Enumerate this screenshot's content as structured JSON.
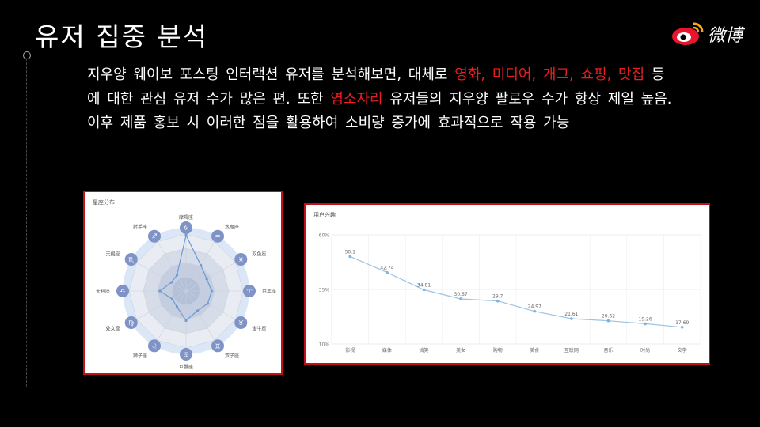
{
  "page": {
    "title": "유저 집중 분석",
    "logo_text": "微博",
    "paragraph": [
      {
        "text": "지우양 웨이보 포스팅 인터랙션 유저를 분석해보면, 대체로 ",
        "highlight": false
      },
      {
        "text": "영화, 미디어, 개그, 쇼핑, 맛집",
        "highlight": true
      },
      {
        "text": " 등에 대한 관심 유저 수가 많은 편. 또한 ",
        "highlight": false
      },
      {
        "text": "염소자리",
        "highlight": true
      },
      {
        "text": " 유저들의 지우양 팔로우 수가 항상 제일 높음. 이후 제품 홍보 시 이러한 점을 활용하여 소비량 증가에 효과적으로 작용 가능",
        "highlight": false
      }
    ],
    "colors": {
      "highlight": "#e81e24",
      "panel_border": "#c0101a",
      "accent": "#7f93c6"
    }
  },
  "chart_data": [
    {
      "type": "radar",
      "title": "星座分布",
      "categories": [
        "摩羯座",
        "水瓶座",
        "双鱼座",
        "白羊座",
        "金牛座",
        "双子座",
        "巨蟹座",
        "狮子座",
        "处女座",
        "天秤座",
        "天蝎座",
        "射手座"
      ],
      "values": [
        0.98,
        0.52,
        0.42,
        0.45,
        0.44,
        0.4,
        0.52,
        0.32,
        0.28,
        0.46,
        0.3,
        0.32
      ]
    },
    {
      "type": "line",
      "title": "用户兴趣",
      "categories": [
        "影视",
        "媒体",
        "搞笑",
        "美女",
        "购物",
        "美食",
        "互联网",
        "音乐",
        "时尚",
        "文学"
      ],
      "values": [
        50.1,
        42.74,
        34.81,
        30.67,
        29.7,
        24.97,
        21.61,
        20.62,
        19.26,
        17.69
      ],
      "yticks": [
        "60%",
        "35%",
        "10%"
      ],
      "ylim": [
        10,
        60
      ],
      "grid": true
    }
  ]
}
